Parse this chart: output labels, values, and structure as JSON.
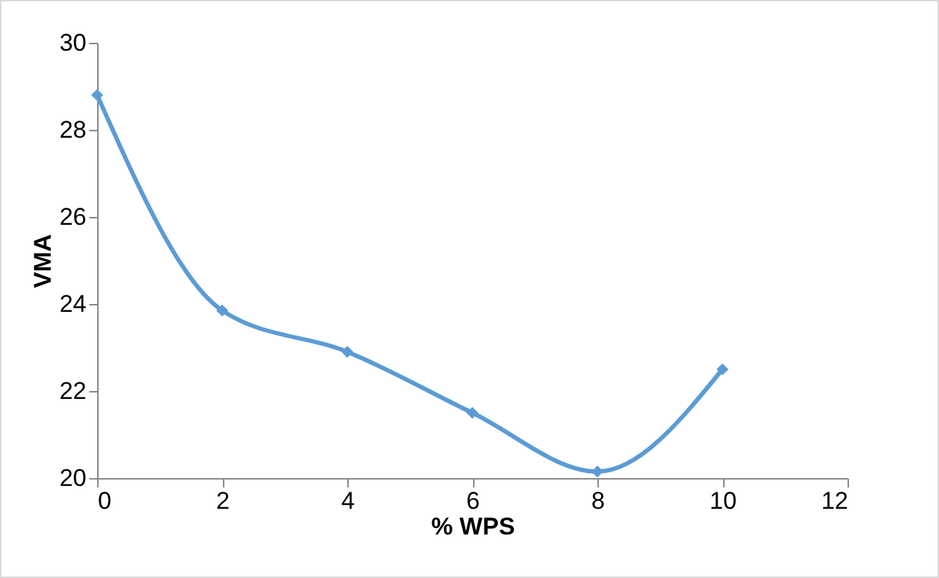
{
  "chart_data": {
    "type": "line",
    "xlabel": "% WPS",
    "ylabel": "VMA",
    "x": [
      0,
      2,
      4,
      6,
      8,
      10
    ],
    "series": [
      {
        "color": "#5b9bd5",
        "values": [
          28.8,
          23.85,
          22.9,
          21.5,
          20.15,
          22.5
        ]
      }
    ],
    "xlim": [
      0,
      12
    ],
    "xticks": [
      0,
      2,
      4,
      6,
      8,
      10,
      12
    ],
    "ylim": [
      20,
      30
    ],
    "yticks": [
      20,
      22,
      24,
      26,
      28,
      30
    ],
    "marker": "diamond",
    "line_style": "solid"
  }
}
